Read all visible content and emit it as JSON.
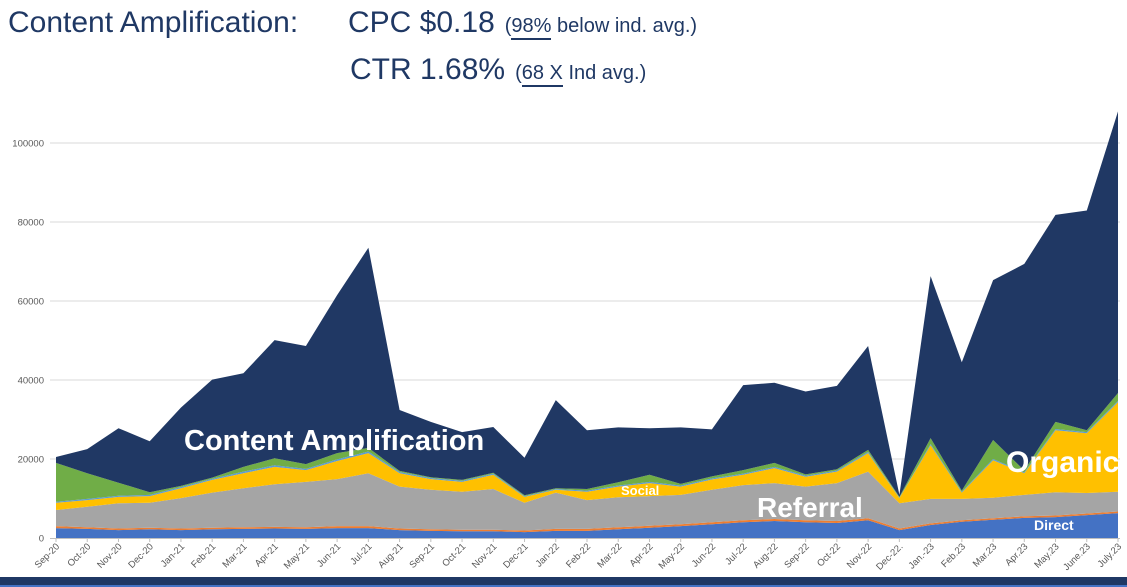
{
  "title": {
    "line1_label": "Content Amplification:",
    "line1_metric": "CPC $0.18",
    "line1_note_open": "(",
    "line1_note_underline": "98%",
    "line1_note_rest": " below ind. avg.)",
    "line2_metric": "CTR 1.68%",
    "line2_note_open": "(",
    "line2_note_underline": "68 X",
    "line2_note_rest": " Ind avg.)"
  },
  "colors": {
    "title_text": "#1f3864",
    "gridline": "#d9d9d9",
    "axis": "#bfbfbf",
    "tick_text": "#595959",
    "footer_bar": "#1f3864",
    "footer_strip": "#4472c4"
  },
  "chart_data": {
    "type": "area",
    "stacked": true,
    "title": "",
    "xlabel": "",
    "ylabel": "",
    "grid": true,
    "legend_position": "none",
    "ylim": [
      0,
      110000
    ],
    "y_ticks": [
      0,
      20000,
      40000,
      60000,
      80000,
      100000
    ],
    "x_label_rotation": -45,
    "x": [
      "Sep-20",
      "Oct-20",
      "Nov-20",
      "Dec-20",
      "Jan-21",
      "Feb-21",
      "Mar-21",
      "Apr-21",
      "May-21",
      "Jun-21",
      "Jul-21",
      "Aug-21",
      "Sep-21",
      "Oct-21",
      "Nov-21",
      "Dec-21",
      "Jan-22",
      "Feb-22",
      "Mar-22",
      "Apr-22",
      "May-22",
      "Jun-22",
      "Jul-22",
      "Aug-22",
      "Sep-22",
      "Oct-22",
      "Nov-22",
      "Dec-22.",
      "Jan.-23",
      "Feb.23",
      "Mar.23",
      "Apr.23",
      "May.23",
      "June.23",
      "July.23"
    ],
    "series": [
      {
        "name": "Direct",
        "color": "#4472c4",
        "values": [
          2500,
          2300,
          2000,
          2200,
          2000,
          2200,
          2300,
          2400,
          2300,
          2500,
          2500,
          2000,
          1800,
          1700,
          1700,
          1500,
          1800,
          1800,
          2200,
          2600,
          3000,
          3500,
          4000,
          4300,
          4000,
          3800,
          4500,
          2000,
          3300,
          4100,
          4600,
          5100,
          5300,
          5800,
          6300
        ]
      },
      {
        "name": "(unlabeled orange)",
        "color": "#ed7d31",
        "values": [
          500,
          400,
          400,
          400,
          400,
          400,
          400,
          400,
          400,
          500,
          500,
          400,
          400,
          400,
          400,
          400,
          500,
          500,
          500,
          500,
          500,
          500,
          500,
          500,
          500,
          500,
          500,
          400,
          400,
          400,
          400,
          400,
          400,
          400,
          400
        ]
      },
      {
        "name": "Referral",
        "color": "#a5a5a5",
        "values": [
          4100,
          5200,
          6400,
          6300,
          7700,
          8900,
          9900,
          10800,
          11500,
          11900,
          13400,
          10600,
          10000,
          9600,
          10300,
          7000,
          9200,
          7300,
          7600,
          7500,
          7400,
          8200,
          8900,
          9100,
          8500,
          9600,
          11800,
          6400,
          6200,
          5400,
          5200,
          5400,
          5900,
          5200,
          5000
        ]
      },
      {
        "name": "Organic",
        "color": "#ffc000",
        "values": [
          1800,
          1700,
          1600,
          1700,
          2500,
          3200,
          3800,
          4400,
          3000,
          4600,
          5100,
          3400,
          2700,
          2500,
          3600,
          1500,
          700,
          2100,
          2700,
          3300,
          2100,
          2600,
          2600,
          3800,
          2500,
          2900,
          4700,
          1300,
          13600,
          1600,
          9500,
          5500,
          15700,
          15100,
          22700
        ]
      },
      {
        "name": "(unlabeled light blue)",
        "color": "#5b9bd5",
        "values": [
          300,
          300,
          300,
          300,
          300,
          300,
          400,
          400,
          300,
          400,
          400,
          300,
          300,
          300,
          300,
          200,
          200,
          300,
          300,
          300,
          300,
          300,
          300,
          300,
          300,
          300,
          300,
          100,
          300,
          200,
          300,
          200,
          300,
          300,
          300
        ]
      },
      {
        "name": "Social",
        "color": "#70ad47",
        "values": [
          9800,
          6500,
          3300,
          700,
          300,
          300,
          1200,
          1800,
          1200,
          1600,
          900,
          300,
          200,
          200,
          200,
          200,
          200,
          400,
          800,
          1800,
          400,
          500,
          900,
          1000,
          300,
          300,
          500,
          200,
          1500,
          300,
          4800,
          500,
          1800,
          500,
          2000
        ]
      },
      {
        "name": "Content Amplification",
        "color": "#203864",
        "values": [
          1500,
          6100,
          13800,
          12900,
          19800,
          24800,
          23700,
          29900,
          29900,
          40000,
          50700,
          15400,
          14000,
          12100,
          11600,
          9500,
          22300,
          14900,
          13900,
          11800,
          14300,
          11900,
          21500,
          20300,
          21000,
          21100,
          26300,
          500,
          41000,
          32500,
          40500,
          52300,
          52400,
          55600,
          71300
        ]
      }
    ],
    "area_labels": {
      "amplification": "Content Amplification",
      "referral": "Referral",
      "organic": "Organic",
      "social": "Social",
      "direct": "Direct"
    }
  }
}
